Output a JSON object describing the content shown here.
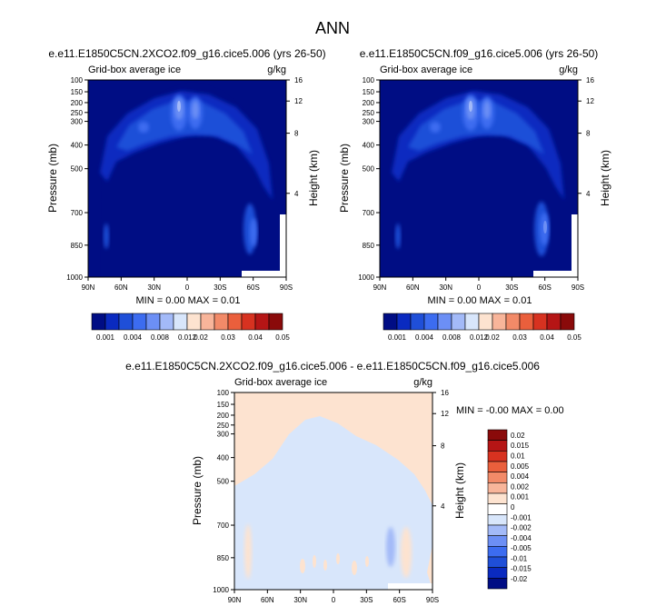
{
  "page": {
    "title": "ANN",
    "panels": [
      {
        "id": "p1",
        "title": "e.e11.E1850C5CN.2XCO2.f09_g16.cice5.006 (yrs 26-50)",
        "subtitle_left": "Grid-box average ice",
        "subtitle_right": "g/kg",
        "ylabel": "Pressure (mb)",
        "y2label": "Height (km)",
        "stats": "MIN =  0.00  MAX =  0.01"
      },
      {
        "id": "p2",
        "title": "e.e11.E1850C5CN.f09_g16.cice5.006 (yrs 26-50)",
        "subtitle_left": "Grid-box average ice",
        "subtitle_right": "g/kg",
        "ylabel": "Pressure (mb)",
        "y2label": "Height (km)",
        "stats": "MIN =  0.00  MAX =  0.01"
      },
      {
        "id": "p3",
        "title": "e.e11.E1850C5CN.2XCO2.f09_g16.cice5.006 - e.e11.E1850C5CN.f09_g16.cice5.006",
        "subtitle_left": "Grid-box average ice",
        "subtitle_right": "g/kg",
        "ylabel": "Pressure (mb)",
        "y2label": "Height (km)",
        "stats": "MIN = -0.00  MAX =  0.00"
      }
    ]
  },
  "chart_data": [
    {
      "type": "heatmap",
      "panel": "p1",
      "x_ticks": [
        "90N",
        "60N",
        "30N",
        "0",
        "30S",
        "60S",
        "90S"
      ],
      "y_ticks": [
        "100",
        "150",
        "200",
        "250",
        "300",
        "400",
        "500",
        "700",
        "850",
        "1000"
      ],
      "y2_ticks": [
        "16",
        "12",
        "8",
        "4"
      ],
      "colorbar": {
        "orientation": "horizontal",
        "labels": [
          "0.001",
          "0.004",
          "0.008",
          "0.012",
          "0.02",
          "0.03",
          "0.04",
          "0.05"
        ],
        "colors": [
          "#000d84",
          "#0a2ac0",
          "#1f4fd8",
          "#3c6cf0",
          "#6c8ff5",
          "#a3baf8",
          "#d8e6fb",
          "#fde3d0",
          "#f8b59a",
          "#f28a68",
          "#ea5f3c",
          "#d73220",
          "#b51515",
          "#8a0a0a"
        ]
      }
    },
    {
      "type": "heatmap",
      "panel": "p2",
      "x_ticks": [
        "90N",
        "60N",
        "30N",
        "0",
        "30S",
        "60S",
        "90S"
      ],
      "y_ticks": [
        "100",
        "150",
        "200",
        "250",
        "300",
        "400",
        "500",
        "700",
        "850",
        "1000"
      ],
      "y2_ticks": [
        "16",
        "12",
        "8",
        "4"
      ],
      "colorbar": {
        "orientation": "horizontal",
        "labels": [
          "0.001",
          "0.004",
          "0.008",
          "0.012",
          "0.02",
          "0.03",
          "0.04",
          "0.05"
        ],
        "colors": [
          "#000d84",
          "#0a2ac0",
          "#1f4fd8",
          "#3c6cf0",
          "#6c8ff5",
          "#a3baf8",
          "#d8e6fb",
          "#fde3d0",
          "#f8b59a",
          "#f28a68",
          "#ea5f3c",
          "#d73220",
          "#b51515",
          "#8a0a0a"
        ]
      }
    },
    {
      "type": "heatmap",
      "panel": "p3",
      "x_ticks": [
        "90N",
        "60N",
        "30N",
        "0",
        "30S",
        "60S",
        "90S"
      ],
      "y_ticks": [
        "100",
        "150",
        "200",
        "250",
        "300",
        "400",
        "500",
        "700",
        "850",
        "1000"
      ],
      "y2_ticks": [
        "16",
        "12",
        "8",
        "4"
      ],
      "colorbar": {
        "orientation": "vertical",
        "labels": [
          "0.02",
          "0.015",
          "0.01",
          "0.005",
          "0.004",
          "0.002",
          "0.001",
          "0",
          "-0.001",
          "-0.002",
          "-0.004",
          "-0.005",
          "-0.01",
          "-0.015",
          "-0.02"
        ],
        "colors": [
          "#8a0a0a",
          "#b51515",
          "#d73220",
          "#ea5f3c",
          "#f28a68",
          "#f8b59a",
          "#fde3d0",
          "#ffffff",
          "#d8e6fb",
          "#a3baf8",
          "#6c8ff5",
          "#3c6cf0",
          "#1f4fd8",
          "#0a2ac0",
          "#000d84"
        ]
      }
    }
  ]
}
